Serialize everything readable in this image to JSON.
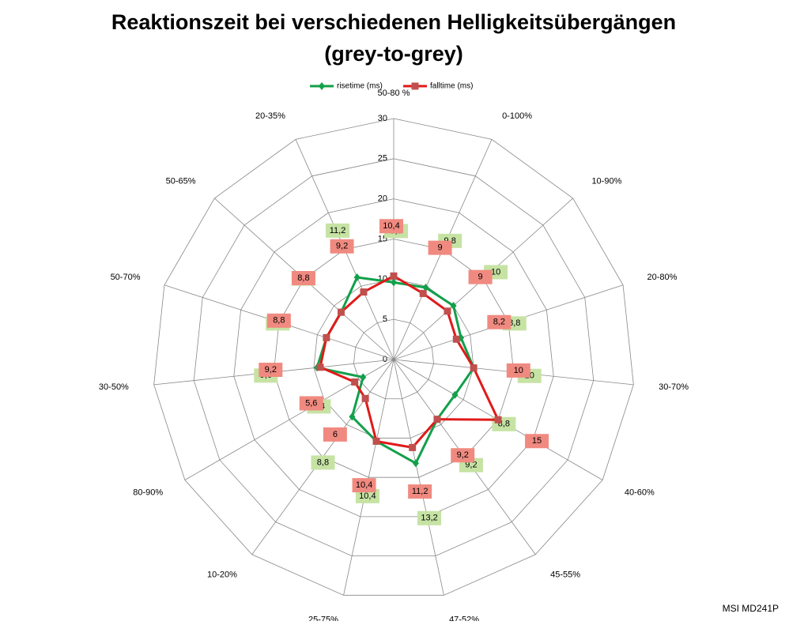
{
  "chart_data": {
    "type": "radar",
    "title": "Reaktionszeit bei verschiedenen Helligkeitsübergängen",
    "subtitle": "(grey-to-grey)",
    "annotation": "MSI MD241P",
    "categories": [
      "50-80 %",
      "0-100%",
      "10-90%",
      "20-80%",
      "30-70%",
      "40-60%",
      "45-55%",
      "47-52%",
      "25-75%",
      "10-20%",
      "80-90%",
      "30-50%",
      "50-70%",
      "50-65%",
      "20-35%"
    ],
    "series": [
      {
        "name": "risetime (ms)",
        "color": "#12a04a",
        "label_color": "#c6e3a4",
        "values": [
          9.6,
          9.8,
          10,
          8.8,
          10,
          8.8,
          9.2,
          13.2,
          10.4,
          8.8,
          4.4,
          9.6,
          8.8,
          8.8,
          11.2
        ],
        "value_labels": [
          "9,6",
          "9,8",
          "10",
          "8,8",
          "10",
          "8,8",
          "9,2",
          "13,2",
          "10,4",
          "8,8",
          "4,4",
          "9,6",
          "8,8",
          "8,8",
          "11,2"
        ]
      },
      {
        "name": "falltime (ms)",
        "color": "#e01a1a",
        "label_color": "#f08a80",
        "values": [
          10.4,
          9,
          9,
          8.2,
          10,
          15,
          9.2,
          11.2,
          10.4,
          6,
          5.6,
          9.2,
          8.8,
          8.8,
          9.2
        ],
        "value_labels": [
          "10,4",
          "9",
          "9",
          "8,2",
          "10",
          "15",
          "9,2",
          "11,2",
          "10,4",
          "6",
          "5,6",
          "9,2",
          "8,8",
          "8,8",
          "9,2"
        ]
      }
    ],
    "ylim": [
      0,
      30
    ],
    "yticks": [
      0,
      5,
      10,
      15,
      20,
      25,
      30
    ],
    "grid": true,
    "legend": "top"
  }
}
